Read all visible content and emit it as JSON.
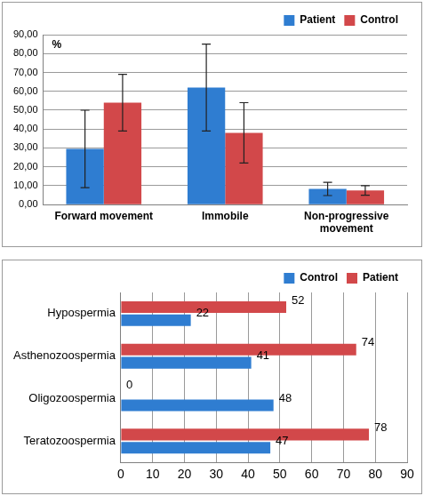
{
  "chart_data": [
    {
      "type": "bar",
      "ylabel": "%",
      "categories": [
        "Forward movement",
        "Immobile",
        "Non-progressive movement"
      ],
      "series": [
        {
          "name": "Patient",
          "color": "#2f7dd1",
          "values": [
            29.5,
            62,
            8.3
          ],
          "errors": [
            20.5,
            23,
            3.5
          ]
        },
        {
          "name": "Control",
          "color": "#d2484a",
          "values": [
            54,
            38,
            7.5
          ],
          "errors": [
            15,
            16,
            2.5
          ]
        }
      ],
      "ylim": [
        0,
        90
      ],
      "yticks": [
        {
          "value": 0,
          "label": "0,00"
        },
        {
          "value": 10,
          "label": "10,00"
        },
        {
          "value": 20,
          "label": "20,00"
        },
        {
          "value": 30,
          "label": "30,00"
        },
        {
          "value": 40,
          "label": "40,00"
        },
        {
          "value": 50,
          "label": "50,00"
        },
        {
          "value": 60,
          "label": "60,00"
        },
        {
          "value": 70,
          "label": "70,00"
        },
        {
          "value": 80,
          "label": "80,00"
        },
        {
          "value": 90,
          "label": "90,00"
        }
      ],
      "grid": true,
      "legend": "top-right"
    },
    {
      "type": "bar",
      "orientation": "horizontal",
      "categories": [
        "Hypospermia",
        "Asthenozoospermia",
        "Oligozoospermia",
        "Teratozoospermia"
      ],
      "series": [
        {
          "name": "Control",
          "color": "#2f7dd1",
          "values": [
            22,
            41,
            48,
            47
          ]
        },
        {
          "name": "Patient",
          "color": "#d2484a",
          "values": [
            52,
            74,
            0,
            78
          ]
        }
      ],
      "xlim": [
        0,
        90
      ],
      "xticks": [
        0,
        10,
        20,
        30,
        40,
        50,
        60,
        70,
        80,
        90
      ],
      "grid": true,
      "legend": "top-right",
      "data_labels": true
    }
  ]
}
